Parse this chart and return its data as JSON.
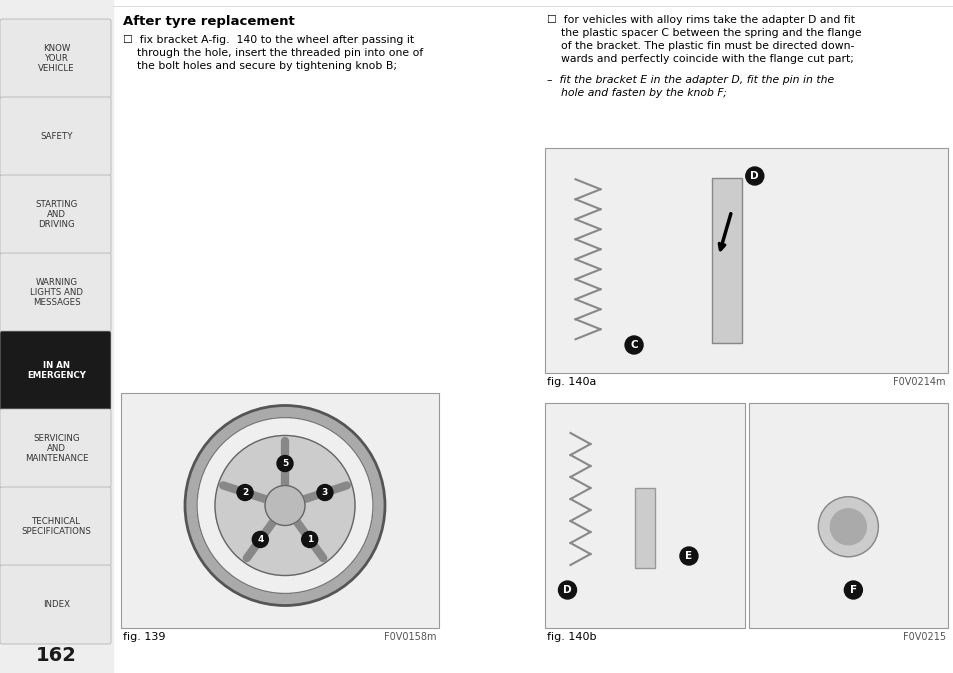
{
  "page_number": "162",
  "bg_color": "#ffffff",
  "sidebar_bg": "#e8e8e8",
  "sidebar_active_bg": "#1a1a1a",
  "sidebar_active_text": "#ffffff",
  "sidebar_inactive_text": "#333333",
  "sidebar_items": [
    {
      "label": "KNOW\nYOUR\nVEHICLE",
      "active": false
    },
    {
      "label": "SAFETY",
      "active": false
    },
    {
      "label": "STARTING\nAND\nDRIVING",
      "active": false
    },
    {
      "label": "WARNING\nLIGHTS AND\nMESSAGES",
      "active": false
    },
    {
      "label": "IN AN\nEMERGENCY",
      "active": true
    },
    {
      "label": "SERVICING\nAND\nMAINTENANCE",
      "active": false
    },
    {
      "label": "TECHNICAL\nSPECIFICATIONS",
      "active": false
    },
    {
      "label": "INDEX",
      "active": false
    }
  ],
  "title": "After tyre replacement",
  "left_lines": [
    "☐  fix bracket A-fig.  140 to the wheel after passing it",
    "    through the hole, insert the threaded pin into one of",
    "    the bolt holes and secure by tightening knob B;"
  ],
  "right_lines_1": [
    "☐  for vehicles with alloy rims take the adapter D and fit",
    "    the plastic spacer C between the spring and the flange",
    "    of the bracket. The plastic fin must be directed down-",
    "    wards and perfectly coincide with the flange cut part;"
  ],
  "right_lines_2": [
    "–  fit the bracket E in the adapter D, fit the pin in the",
    "    hole and fasten by the knob F;"
  ],
  "fig139_label": "fig. 139",
  "fig139_code": "F0V0158m",
  "fig140a_label": "fig. 140a",
  "fig140a_code": "F0V0214m",
  "fig140b_label": "fig. 140b",
  "fig140b_code": "F0V0215",
  "border_color": "#999999",
  "fig_bg": "#efefef"
}
